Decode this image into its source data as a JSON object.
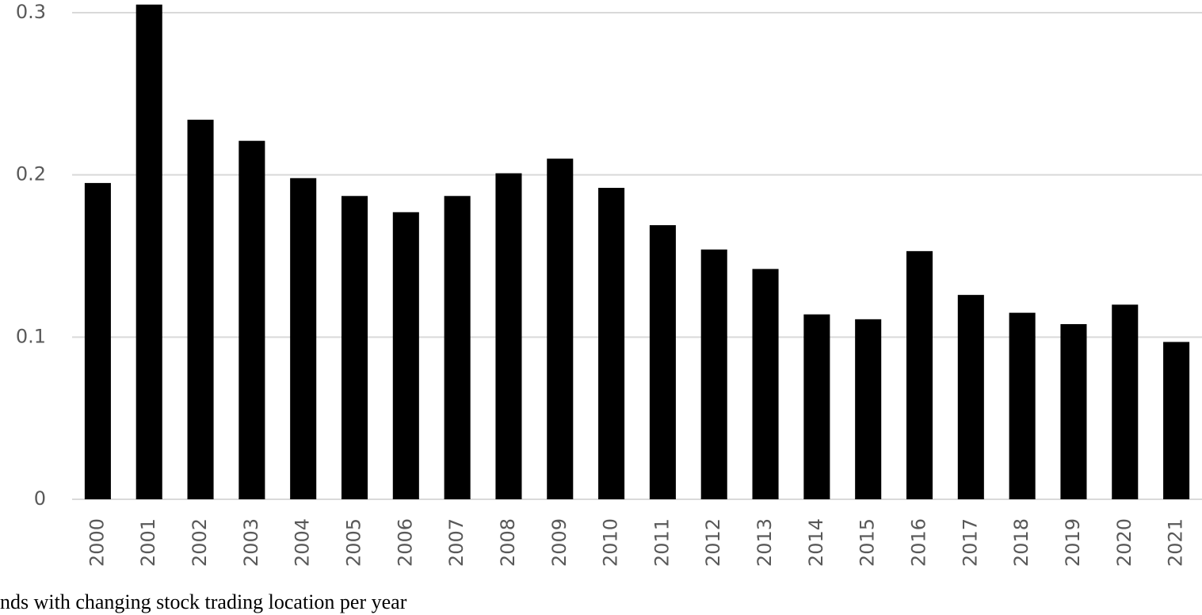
{
  "chart_data": {
    "type": "bar",
    "categories": [
      "2000",
      "2001",
      "2002",
      "2003",
      "2004",
      "2005",
      "2006",
      "2007",
      "2008",
      "2009",
      "2010",
      "2011",
      "2012",
      "2013",
      "2014",
      "2015",
      "2016",
      "2017",
      "2018",
      "2019",
      "2020",
      "2021"
    ],
    "values": [
      0.195,
      0.305,
      0.234,
      0.221,
      0.198,
      0.187,
      0.177,
      0.187,
      0.201,
      0.21,
      0.192,
      0.169,
      0.154,
      0.142,
      0.114,
      0.111,
      0.153,
      0.126,
      0.115,
      0.108,
      0.12,
      0.097
    ],
    "color": "#000000",
    "ylim": [
      0,
      0.3
    ],
    "yticks": [
      0,
      0.1,
      0.2,
      0.3
    ],
    "grid": true,
    "caption": "nds with changing stock trading location per year"
  }
}
